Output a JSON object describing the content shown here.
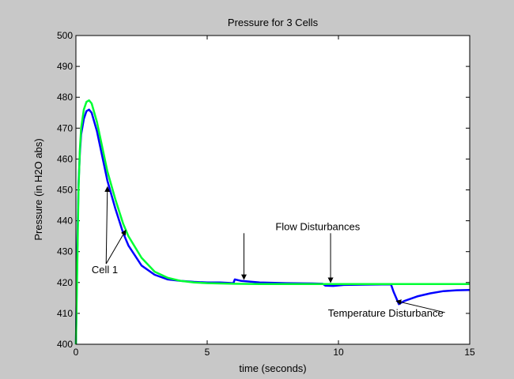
{
  "chart_data": {
    "type": "line",
    "title": "Pressure for 3 Cells",
    "xlabel": "time (seconds)",
    "ylabel": "Pressure (in H2O abs)",
    "xlim": [
      0,
      15
    ],
    "ylim": [
      400,
      500
    ],
    "xticks": [
      0,
      5,
      10,
      15
    ],
    "yticks": [
      400,
      410,
      420,
      430,
      440,
      450,
      460,
      470,
      480,
      490,
      500
    ],
    "grid": false,
    "colors": {
      "blue": "#0000ff",
      "green": "#00ff33",
      "axis": "#000000",
      "background": "#ffffff",
      "figure": "#c8c8c8"
    },
    "series": [
      {
        "color": "#0000ff",
        "x": [
          0,
          0.05,
          0.1,
          0.15,
          0.2,
          0.3,
          0.4,
          0.5,
          0.6,
          0.8,
          1.0,
          1.2,
          1.5,
          1.8,
          2.0,
          2.5,
          3.0,
          3.5,
          4.0,
          4.5,
          5.0,
          5.5,
          6.0,
          6.05,
          6.3,
          7.0,
          8.0,
          9.0,
          9.4,
          9.5,
          9.8,
          10.2,
          11.0,
          12.0,
          12.1,
          12.3,
          12.5,
          13.0,
          13.5,
          14.0,
          14.5,
          15.0
        ],
        "y": [
          400,
          430,
          452,
          462,
          468,
          473,
          475.5,
          476,
          475,
          469,
          461,
          453,
          444,
          436,
          432,
          425.5,
          422.5,
          421,
          420.5,
          420.2,
          420,
          420,
          419.8,
          421,
          420.5,
          420,
          419.8,
          419.7,
          419.6,
          419,
          418.9,
          419.2,
          419.3,
          419.4,
          417,
          413,
          414,
          415.5,
          416.5,
          417.2,
          417.5,
          417.6
        ]
      },
      {
        "color": "#00ff33",
        "x": [
          0,
          0.05,
          0.1,
          0.15,
          0.2,
          0.3,
          0.4,
          0.5,
          0.6,
          0.8,
          1.0,
          1.2,
          1.5,
          1.8,
          2.0,
          2.5,
          3.0,
          3.5,
          4.0,
          4.5,
          5.0,
          6.0,
          7.0,
          8.0,
          9.0,
          10.0,
          11.0,
          12.0,
          13.0,
          14.0,
          15.0
        ],
        "y": [
          400,
          425,
          450,
          463,
          470,
          476,
          478.5,
          479,
          478,
          472,
          464,
          456,
          447,
          439,
          435,
          428,
          423.5,
          421.5,
          420.5,
          420,
          419.8,
          419.6,
          419.5,
          419.5,
          419.5,
          419.5,
          419.5,
          419.5,
          419.5,
          419.5,
          419.5
        ]
      }
    ],
    "annotations": [
      {
        "text": "Cell 1",
        "anchor": [
          0.6,
          423
        ],
        "arrows": [
          [
            1.2,
            451
          ],
          [
            1.9,
            437
          ]
        ]
      },
      {
        "text": "Flow Disturbances",
        "anchor": [
          7.6,
          437
        ],
        "arrows": [
          [
            6.4,
            421
          ],
          [
            9.7,
            420
          ]
        ]
      },
      {
        "text": "Temperature Disturbance",
        "anchor": [
          9.6,
          409
        ],
        "arrows": [
          [
            12.2,
            414
          ]
        ]
      }
    ]
  }
}
